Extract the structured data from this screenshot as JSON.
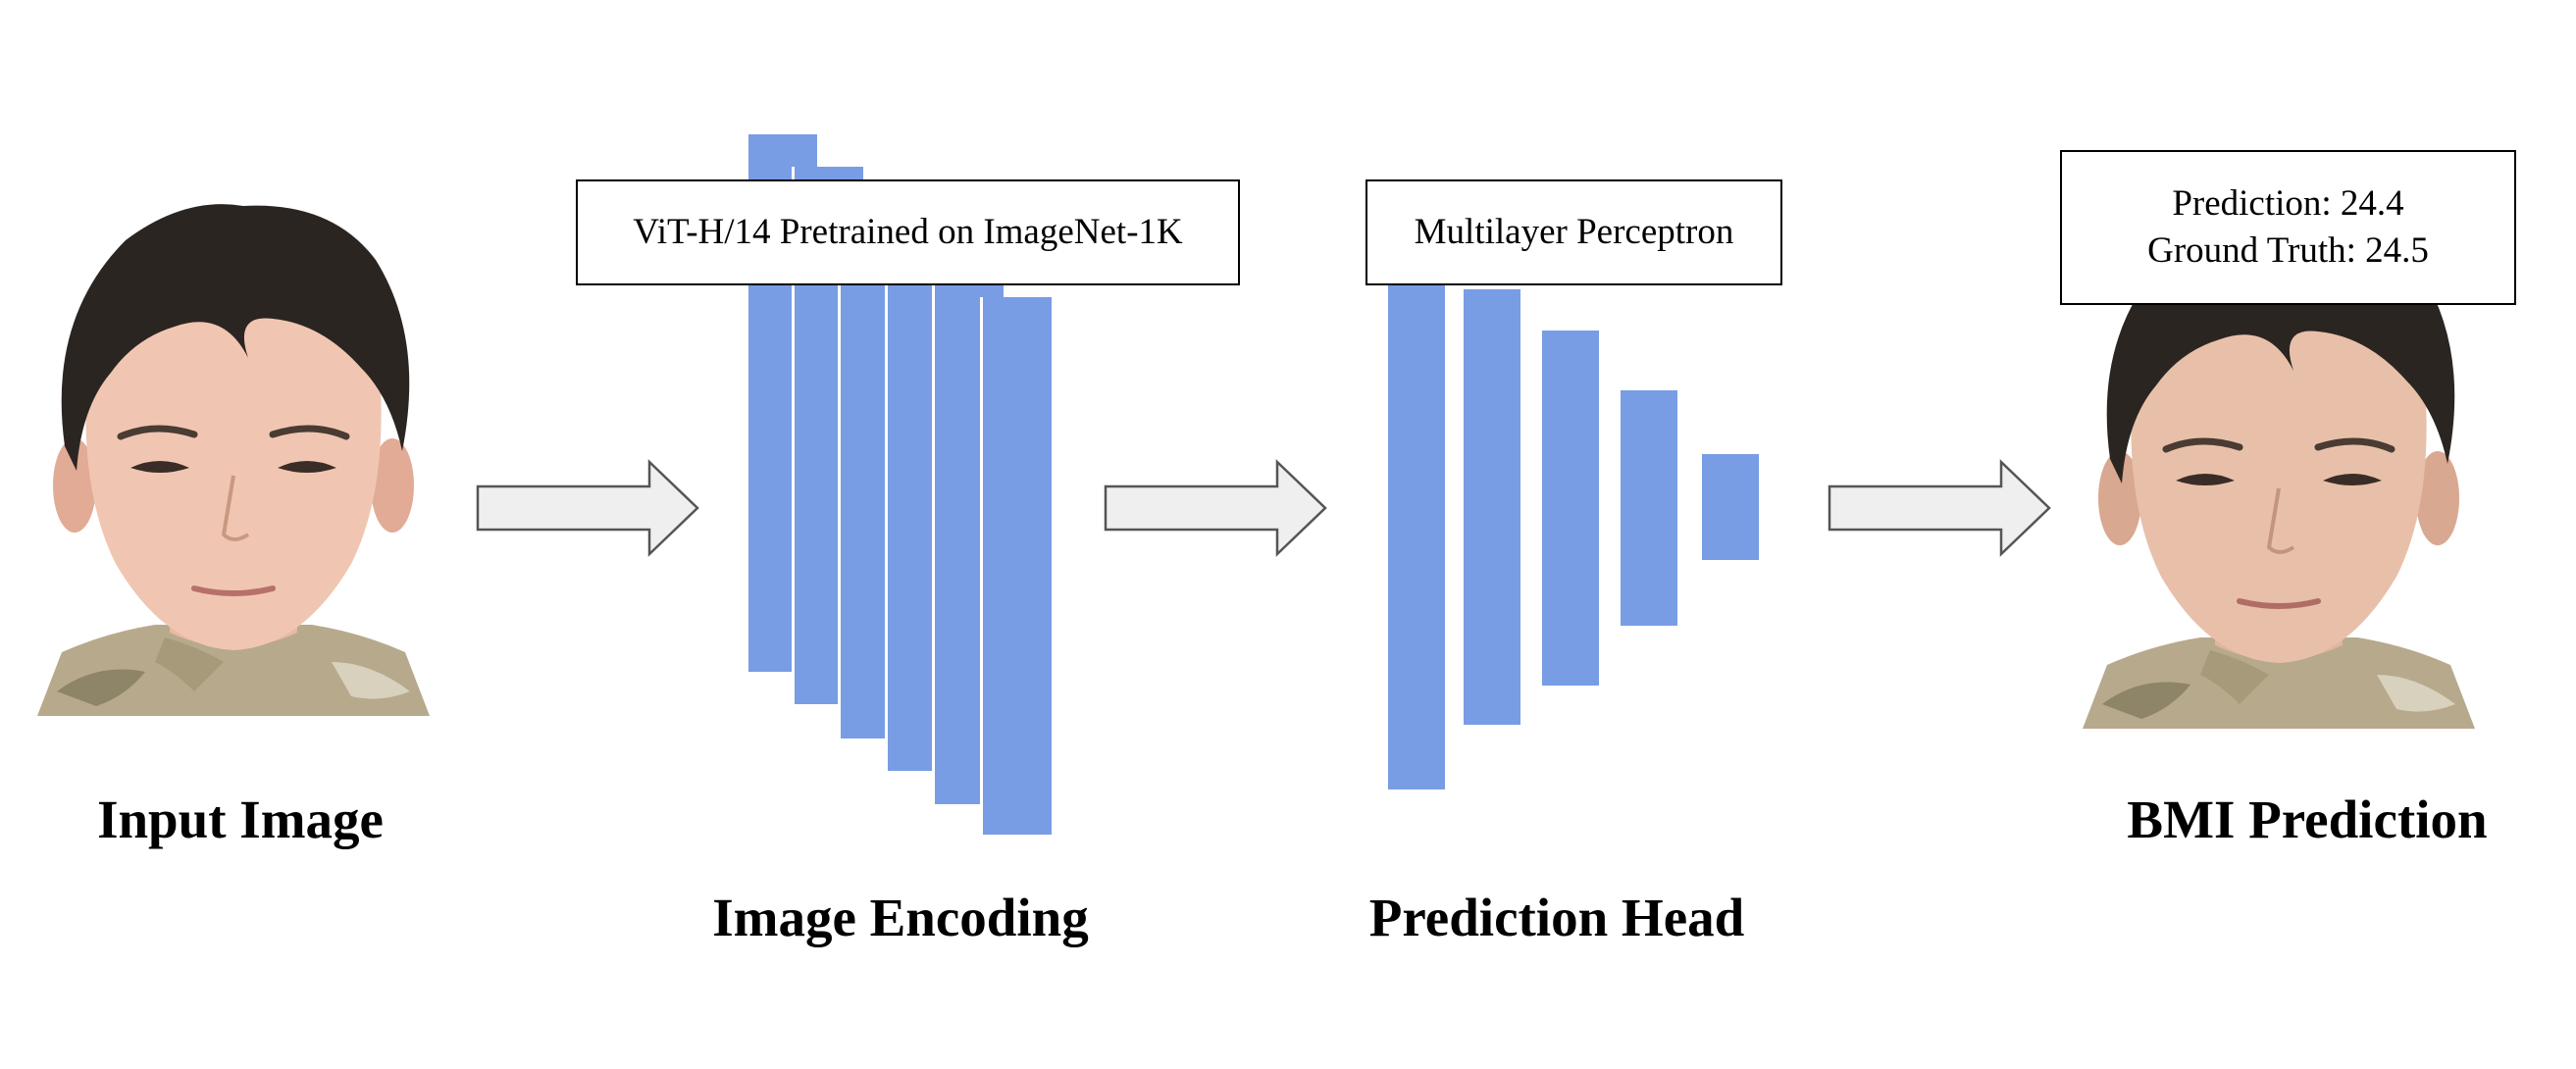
{
  "stages": {
    "input_title": "Input Image",
    "encoding_title": "Image Encoding",
    "head_title": "Prediction Head",
    "output_title": "BMI Prediction"
  },
  "encoder_box": {
    "text": "ViT-H/14 Pretrained on ImageNet-1K"
  },
  "head_box": {
    "text": "Multilayer Perceptron"
  },
  "result_box": {
    "prediction": "Prediction: 24.4",
    "ground_truth": "Ground Truth: 24.5"
  },
  "colors": {
    "layer_blue": "#789de4",
    "arrow_fill": "#efefef",
    "arrow_stroke": "#555555"
  },
  "icons": [
    "face-photo",
    "right-arrow"
  ]
}
